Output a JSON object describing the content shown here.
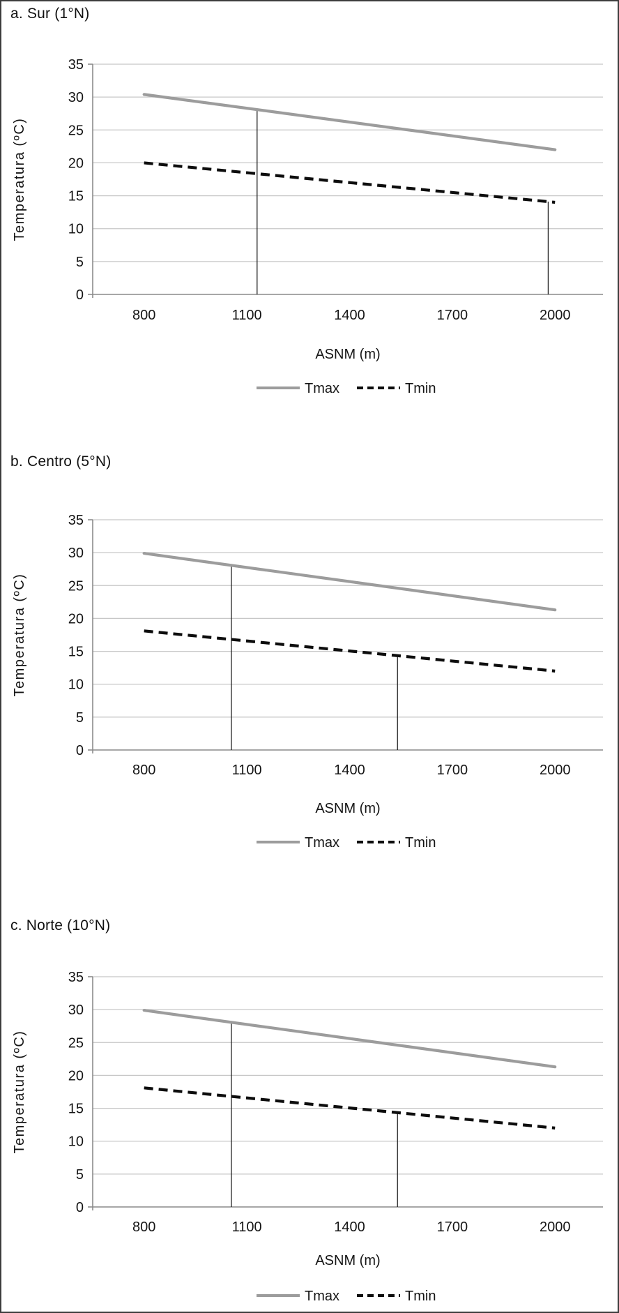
{
  "figure": {
    "background": "#ffffff",
    "border_color": "#3d3d3d",
    "text_color": "#151515",
    "grid_color": "#c7c7c7",
    "axis_color": "#8a8a8a",
    "marker_line_color": "#1a1a1a",
    "tmax_color": "#9c9c9c",
    "tmin_color": "#0d0d0d"
  },
  "chart_data": [
    {
      "type": "line",
      "title": "a. Sur (1°N)",
      "xlabel": "ASNM (m)",
      "ylabel": "Temperatura (ºC)",
      "xlim": [
        650,
        2140
      ],
      "ylim": [
        0,
        35
      ],
      "x_ticks": [
        800,
        1100,
        1400,
        1700,
        2000
      ],
      "y_ticks": [
        0,
        5,
        10,
        15,
        20,
        25,
        30,
        35
      ],
      "grid": "horizontal",
      "legend_position": "bottom-center",
      "series": [
        {
          "name": "Tmax",
          "style": "solid",
          "x": [
            800,
            2000
          ],
          "values": [
            30.4,
            22.0
          ]
        },
        {
          "name": "Tmin",
          "style": "dashed",
          "x": [
            800,
            2000
          ],
          "values": [
            20.0,
            14.0
          ]
        }
      ],
      "threshold_lines": [
        {
          "x": 1130,
          "y_top": 28.1
        },
        {
          "x": 1980,
          "y_top": 14.1
        }
      ]
    },
    {
      "type": "line",
      "title": "b. Centro (5°N)",
      "xlabel": "ASNM (m)",
      "ylabel": "Temperatura (ºC)",
      "xlim": [
        650,
        2140
      ],
      "ylim": [
        0,
        35
      ],
      "x_ticks": [
        800,
        1100,
        1400,
        1700,
        2000
      ],
      "y_ticks": [
        0,
        5,
        10,
        15,
        20,
        25,
        30,
        35
      ],
      "grid": "horizontal",
      "legend_position": "bottom-center",
      "series": [
        {
          "name": "Tmax",
          "style": "solid",
          "x": [
            800,
            2000
          ],
          "values": [
            29.9,
            21.3
          ]
        },
        {
          "name": "Tmin",
          "style": "dashed",
          "x": [
            800,
            2000
          ],
          "values": [
            18.1,
            12.0
          ]
        }
      ],
      "threshold_lines": [
        {
          "x": 1055,
          "y_top": 28.0
        },
        {
          "x": 1540,
          "y_top": 14.35
        }
      ]
    },
    {
      "type": "line",
      "title": "c. Norte (10°N)",
      "xlabel": "ASNM (m)",
      "ylabel": "Temperatura (ºC)",
      "xlim": [
        650,
        2140
      ],
      "ylim": [
        0,
        35
      ],
      "x_ticks": [
        800,
        1100,
        1400,
        1700,
        2000
      ],
      "y_ticks": [
        0,
        5,
        10,
        15,
        20,
        25,
        30,
        35
      ],
      "grid": "horizontal",
      "legend_position": "bottom-center",
      "series": [
        {
          "name": "Tmax",
          "style": "solid",
          "x": [
            800,
            2000
          ],
          "values": [
            29.9,
            21.3
          ]
        },
        {
          "name": "Tmin",
          "style": "dashed",
          "x": [
            800,
            2000
          ],
          "values": [
            18.1,
            12.0
          ]
        }
      ],
      "threshold_lines": [
        {
          "x": 1055,
          "y_top": 28.0
        },
        {
          "x": 1540,
          "y_top": 14.35
        }
      ]
    }
  ]
}
